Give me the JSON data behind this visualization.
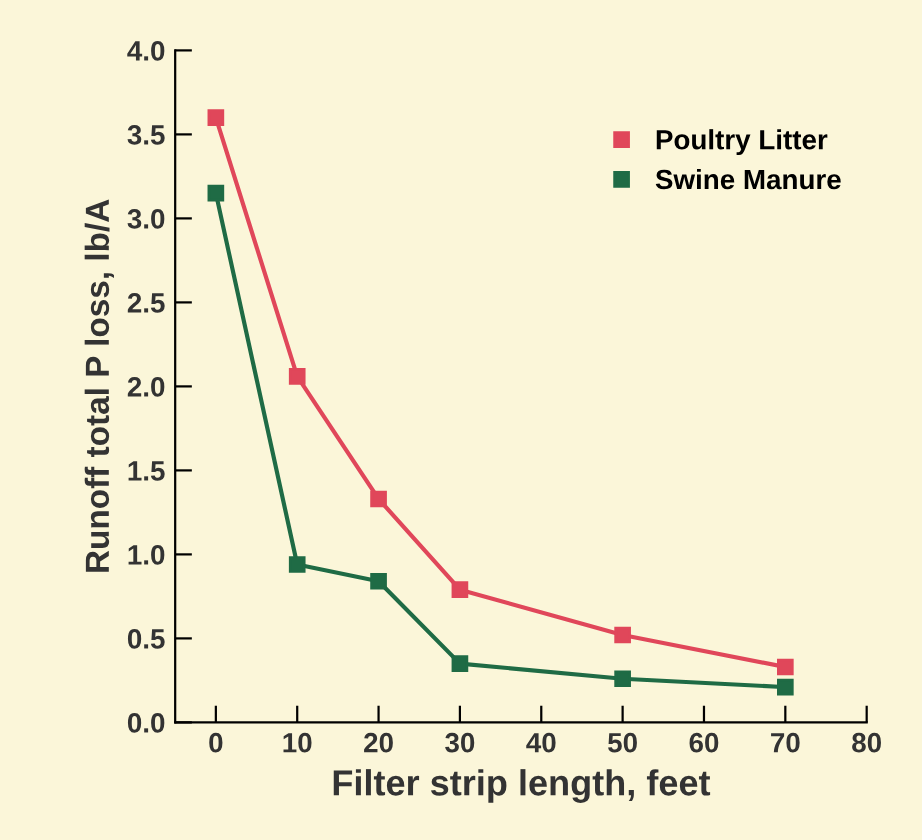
{
  "chart_data": {
    "type": "line",
    "xlabel": "Filter strip length, feet",
    "ylabel": "Runoff total P loss, lb/A",
    "x": [
      0,
      10,
      20,
      30,
      50,
      70
    ],
    "series": [
      {
        "name": "Poultry Litter",
        "color": "#e0475a",
        "values": [
          3.6,
          2.06,
          1.33,
          0.79,
          0.52,
          0.33
        ]
      },
      {
        "name": "Swine Manure",
        "color": "#1f6b45",
        "values": [
          3.15,
          0.94,
          0.84,
          0.35,
          0.26,
          0.21
        ]
      }
    ],
    "xlim": [
      -5,
      80
    ],
    "xticks": [
      0,
      10,
      20,
      30,
      40,
      50,
      60,
      70,
      80
    ],
    "ylim": [
      0,
      4
    ],
    "yticks": [
      {
        "value": 0,
        "label": "0.0"
      },
      {
        "value": 0.5,
        "label": "0.5"
      },
      {
        "value": 1,
        "label": "1.0"
      },
      {
        "value": 1.5,
        "label": "1.5"
      },
      {
        "value": 2,
        "label": "2.0"
      },
      {
        "value": 2.5,
        "label": "2.5"
      },
      {
        "value": 3,
        "label": "3.0"
      },
      {
        "value": 3.5,
        "label": "3.5"
      },
      {
        "value": 4,
        "label": "4.0"
      }
    ],
    "marker": "square",
    "line_style": "solid",
    "grid": false,
    "legend": "top right"
  }
}
